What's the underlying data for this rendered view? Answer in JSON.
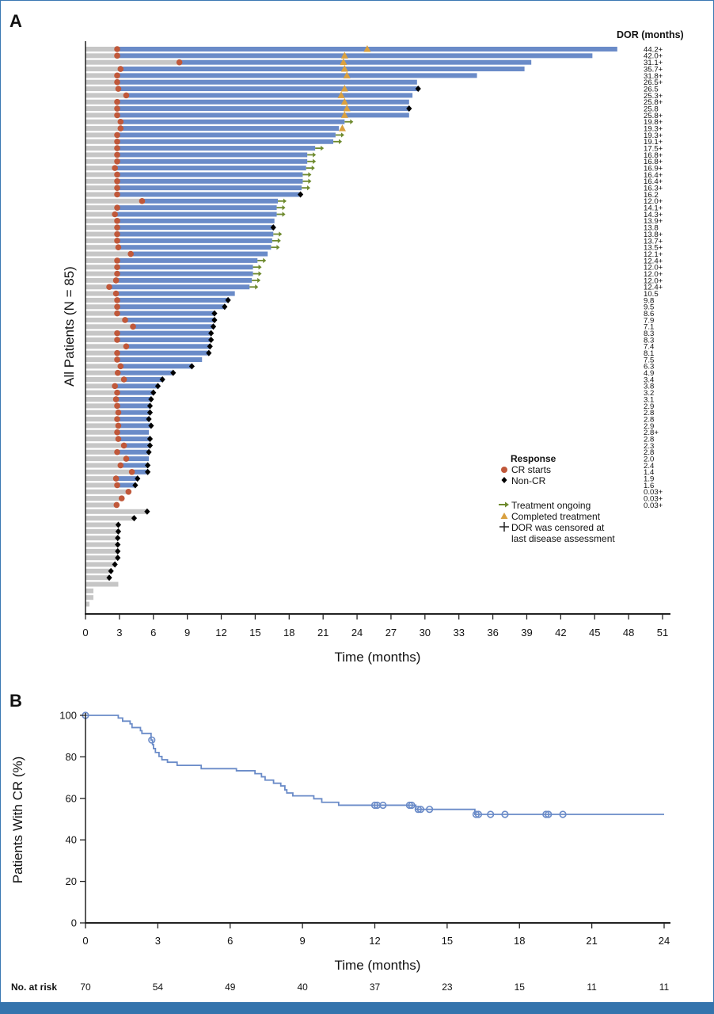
{
  "colors": {
    "frame": "#3574ad",
    "cr_bar": "#6a8bc8",
    "pre_cr_bar": "#c6c6c6",
    "cr_start": "#c0583a",
    "non_cr": "#000000",
    "ongoing": "#6e8a2e",
    "completed": "#d9a03f",
    "km_line": "#6a8bc8"
  },
  "panel_a": {
    "label": "A",
    "dor_header": "DOR (months)"
  },
  "panel_b": {
    "label": "B"
  },
  "legend": {
    "title": "Response",
    "items": [
      {
        "label": "CR starts",
        "icon": "circle"
      },
      {
        "label": "Non-CR",
        "icon": "diamond"
      },
      {
        "label": "Treatment ongoing",
        "icon": "arrow"
      },
      {
        "label": "Completed treatment",
        "icon": "triangle"
      },
      {
        "label": "DOR was censored at",
        "icon": "plus"
      },
      {
        "label": "last disease assessment",
        "icon": ""
      }
    ]
  },
  "chart_data": [
    {
      "type": "swimmer",
      "ylabel": "All Patients (N = 85)",
      "xlabel": "Time (months)",
      "xlim": [
        0,
        51
      ],
      "xticks": [
        "0",
        "3",
        "6",
        "9",
        "12",
        "15",
        "18",
        "21",
        "24",
        "27",
        "30",
        "33",
        "36",
        "39",
        "42",
        "45",
        "48",
        "51"
      ],
      "patients": [
        {
          "dor": "44.2+",
          "cr": 2.8,
          "end": null,
          "tri": 24.9
        },
        {
          "dor": "42.0+",
          "cr": 2.8,
          "end": null,
          "tri": 22.9
        },
        {
          "dor": "31.1+",
          "cr": 8.3,
          "end": null,
          "tri": 22.8
        },
        {
          "dor": "35.7+",
          "cr": 3.1,
          "end": null,
          "tri": 22.9
        },
        {
          "dor": "31.8+",
          "cr": 2.8,
          "end": null,
          "tri": 23.1
        },
        {
          "dor": "26.5+",
          "cr": 2.8,
          "end": null
        },
        {
          "dor": "26.5",
          "cr": 2.9,
          "end": "diamond",
          "tri": 22.9
        },
        {
          "dor": "25.3+",
          "cr": 3.6,
          "end": null,
          "tri": 22.6
        },
        {
          "dor": "25.8+",
          "cr": 2.8,
          "end": null,
          "tri": 22.9
        },
        {
          "dor": "25.8",
          "cr": 2.8,
          "end": "diamond",
          "tri": 23.1
        },
        {
          "dor": "25.8+",
          "cr": 2.8,
          "end": null,
          "tri": 22.9
        },
        {
          "dor": "19.8+",
          "cr": 3.1,
          "end": "arrow"
        },
        {
          "dor": "19.3+",
          "cr": 3.1,
          "end": null,
          "tri": 22.7
        },
        {
          "dor": "19.3+",
          "cr": 2.8,
          "end": "arrow"
        },
        {
          "dor": "19.1+",
          "cr": 2.8,
          "end": "arrow"
        },
        {
          "dor": "17.5+",
          "cr": 2.8,
          "end": "arrow"
        },
        {
          "dor": "16.8+",
          "cr": 2.8,
          "end": "arrow"
        },
        {
          "dor": "16.8+",
          "cr": 2.8,
          "end": "arrow"
        },
        {
          "dor": "16.9+",
          "cr": 2.6,
          "end": "arrow"
        },
        {
          "dor": "16.4+",
          "cr": 2.8,
          "end": "arrow"
        },
        {
          "dor": "16.4+",
          "cr": 2.8,
          "end": "arrow"
        },
        {
          "dor": "16.3+",
          "cr": 2.8,
          "end": "arrow"
        },
        {
          "dor": "16.2",
          "cr": 2.8,
          "end": "diamond"
        },
        {
          "dor": "12.0+",
          "cr": 5.0,
          "end": "arrow"
        },
        {
          "dor": "14.1+",
          "cr": 2.8,
          "end": "arrow"
        },
        {
          "dor": "14.3+",
          "cr": 2.6,
          "end": "arrow"
        },
        {
          "dor": "13.9+",
          "cr": 2.8,
          "end": null
        },
        {
          "dor": "13.8",
          "cr": 2.8,
          "end": "diamond"
        },
        {
          "dor": "13.8+",
          "cr": 2.8,
          "end": "arrow"
        },
        {
          "dor": "13.7+",
          "cr": 2.8,
          "end": "arrow"
        },
        {
          "dor": "13.5+",
          "cr": 2.9,
          "end": "arrow"
        },
        {
          "dor": "12.1+",
          "cr": 4.0,
          "end": null
        },
        {
          "dor": "12.4+",
          "cr": 2.8,
          "end": "arrow"
        },
        {
          "dor": "12.0+",
          "cr": 2.8,
          "end": "arrow"
        },
        {
          "dor": "12.0+",
          "cr": 2.8,
          "end": "arrow"
        },
        {
          "dor": "12.0+",
          "cr": 2.7,
          "end": "arrow"
        },
        {
          "dor": "12.4+",
          "cr": 2.1,
          "end": "arrow"
        },
        {
          "dor": "10.5",
          "cr": 2.7,
          "end": null
        },
        {
          "dor": "9.8",
          "cr": 2.8,
          "end": "diamond"
        },
        {
          "dor": "9.5",
          "cr": 2.8,
          "end": "diamond"
        },
        {
          "dor": "8.6",
          "cr": 2.8,
          "end": "diamond"
        },
        {
          "dor": "7.9",
          "cr": 3.5,
          "end": "diamond"
        },
        {
          "dor": "7.1",
          "cr": 4.2,
          "end": "diamond"
        },
        {
          "dor": "8.3",
          "cr": 2.8,
          "end": "diamond"
        },
        {
          "dor": "8.3",
          "cr": 2.8,
          "end": "diamond"
        },
        {
          "dor": "7.4",
          "cr": 3.6,
          "end": "diamond"
        },
        {
          "dor": "8.1",
          "cr": 2.8,
          "end": "diamond"
        },
        {
          "dor": "7.5",
          "cr": 2.8,
          "end": null
        },
        {
          "dor": "6.3",
          "cr": 3.1,
          "end": "diamond"
        },
        {
          "dor": "4.9",
          "cr": 2.85,
          "end": "diamond"
        },
        {
          "dor": "3.4",
          "cr": 3.4,
          "end": "diamond"
        },
        {
          "dor": "3.8",
          "cr": 2.6,
          "end": "diamond"
        },
        {
          "dor": "3.2",
          "cr": 2.8,
          "end": "diamond"
        },
        {
          "dor": "3.1",
          "cr": 2.7,
          "end": "diamond"
        },
        {
          "dor": "2.9",
          "cr": 2.8,
          "end": "diamond"
        },
        {
          "dor": "2.8",
          "cr": 2.9,
          "end": "diamond"
        },
        {
          "dor": "2.8",
          "cr": 2.8,
          "end": "diamond"
        },
        {
          "dor": "2.9",
          "cr": 2.9,
          "end": "diamond"
        },
        {
          "dor": "2.8+",
          "cr": 2.8,
          "end": null
        },
        {
          "dor": "2.8",
          "cr": 2.9,
          "end": "diamond"
        },
        {
          "dor": "2.3",
          "cr": 3.4,
          "end": "diamond"
        },
        {
          "dor": "2.8",
          "cr": 2.8,
          "end": "diamond"
        },
        {
          "dor": "2.0",
          "cr": 3.6,
          "end": null
        },
        {
          "dor": "2.4",
          "cr": 3.1,
          "end": "diamond"
        },
        {
          "dor": "1.4",
          "cr": 4.1,
          "end": "diamond"
        },
        {
          "dor": "1.9",
          "cr": 2.7,
          "end": "diamond"
        },
        {
          "dor": "1.6",
          "cr": 2.8,
          "end": "diamond"
        },
        {
          "dor": "0.03+",
          "cr": 3.8,
          "end": null
        },
        {
          "dor": "0.03+",
          "cr": 3.2,
          "end": null
        },
        {
          "dor": "0.03+",
          "cr": 2.75,
          "end": null
        },
        {
          "time": 5.45,
          "end": "diamond"
        },
        {
          "time": 4.3,
          "end": "diamond"
        },
        {
          "time": 2.9,
          "end": "diamond"
        },
        {
          "time": 2.9,
          "end": "diamond"
        },
        {
          "time": 2.85,
          "end": "diamond"
        },
        {
          "time": 2.85,
          "end": "diamond"
        },
        {
          "time": 2.85,
          "end": "diamond"
        },
        {
          "time": 2.85,
          "end": "diamond"
        },
        {
          "time": 2.6,
          "end": "diamond"
        },
        {
          "time": 2.25,
          "end": "diamond"
        },
        {
          "time": 2.1,
          "end": "diamond"
        },
        {
          "time": 2.9,
          "end": null
        },
        {
          "time": 0.7,
          "end": null
        },
        {
          "time": 0.7,
          "end": null
        },
        {
          "time": 0.35,
          "end": null
        }
      ]
    },
    {
      "type": "line",
      "subtype": "kaplan-meier",
      "xlabel": "Time (months)",
      "ylabel": "Patients With CR (%)",
      "xlim": [
        0,
        24
      ],
      "ylim": [
        0,
        100
      ],
      "xticks": [
        "0",
        "3",
        "6",
        "9",
        "12",
        "15",
        "18",
        "21",
        "24"
      ],
      "yticks": [
        "0",
        "20",
        "40",
        "60",
        "80",
        "100"
      ],
      "steps": [
        [
          0,
          100
        ],
        [
          1.36,
          98.7
        ],
        [
          1.54,
          97.2
        ],
        [
          1.85,
          95.9
        ],
        [
          1.93,
          94.1
        ],
        [
          2.28,
          92.6
        ],
        [
          2.34,
          91.3
        ],
        [
          2.72,
          88.1
        ],
        [
          2.78,
          85.9
        ],
        [
          2.82,
          84.0
        ],
        [
          2.9,
          82.1
        ],
        [
          3.05,
          80.2
        ],
        [
          3.17,
          78.6
        ],
        [
          3.4,
          77.4
        ],
        [
          3.8,
          75.9
        ],
        [
          4.8,
          74.3
        ],
        [
          6.26,
          73.3
        ],
        [
          7.03,
          71.9
        ],
        [
          7.3,
          70.4
        ],
        [
          7.45,
          68.8
        ],
        [
          7.8,
          67.3
        ],
        [
          8.1,
          66.0
        ],
        [
          8.27,
          64.1
        ],
        [
          8.35,
          62.6
        ],
        [
          8.6,
          61.2
        ],
        [
          9.47,
          59.8
        ],
        [
          9.8,
          58.1
        ],
        [
          10.5,
          56.7
        ],
        [
          13.7,
          54.7
        ],
        [
          16.15,
          52.3
        ],
        [
          24,
          52.3
        ]
      ],
      "censored": [
        [
          0,
          100
        ],
        [
          2.75,
          88.1
        ],
        [
          12.0,
          56.7
        ],
        [
          12.1,
          56.7
        ],
        [
          12.34,
          56.7
        ],
        [
          13.44,
          56.7
        ],
        [
          13.53,
          56.7
        ],
        [
          13.8,
          54.7
        ],
        [
          13.9,
          54.7
        ],
        [
          14.27,
          54.7
        ],
        [
          16.2,
          52.3
        ],
        [
          16.3,
          52.3
        ],
        [
          16.8,
          52.3
        ],
        [
          17.4,
          52.3
        ],
        [
          19.1,
          52.3
        ],
        [
          19.2,
          52.3
        ],
        [
          19.8,
          52.3
        ]
      ],
      "at_risk_label": "No. at risk",
      "at_risk": [
        "70",
        "54",
        "49",
        "40",
        "37",
        "23",
        "15",
        "11",
        "11"
      ]
    }
  ]
}
